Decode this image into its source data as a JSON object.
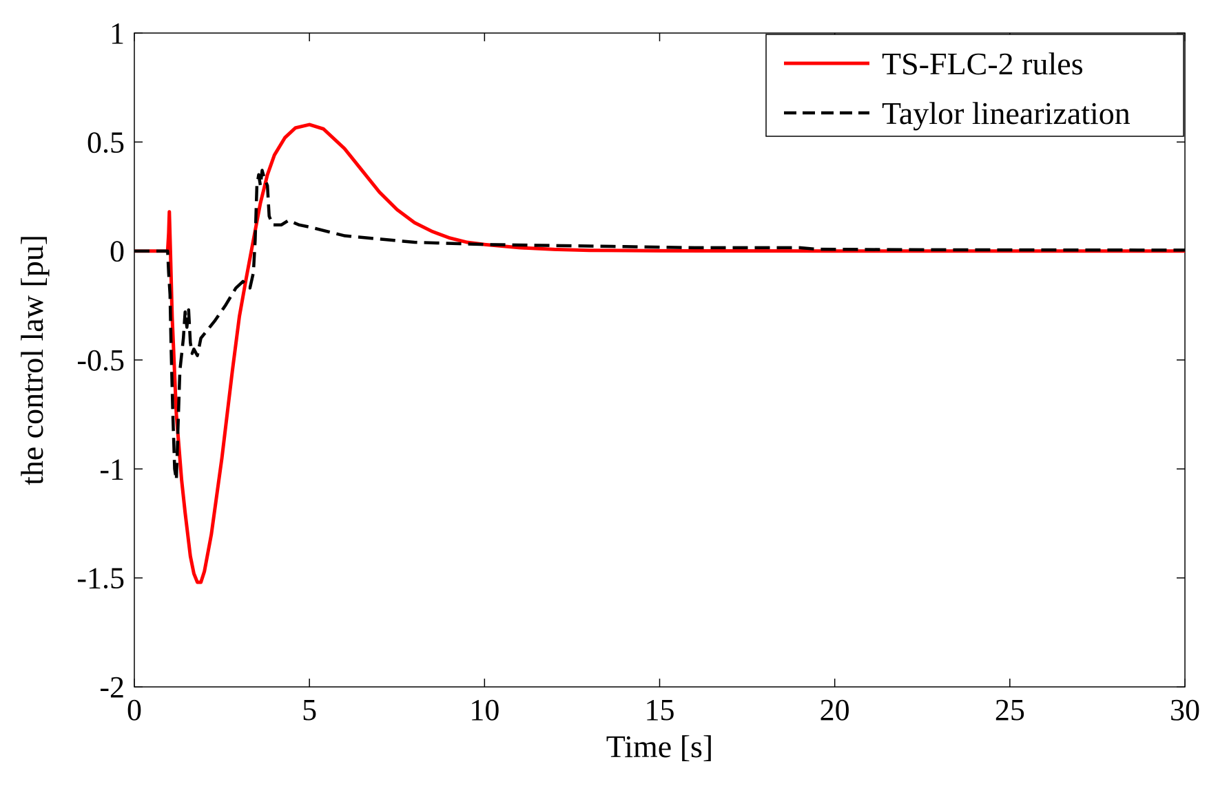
{
  "chart_data": {
    "type": "line",
    "title": "",
    "xlabel": "Time [s]",
    "ylabel": "the control law [pu]",
    "xlim": [
      0,
      30
    ],
    "ylim": [
      -2,
      1
    ],
    "grid": false,
    "legend_position": "top-right",
    "xticks": [
      0,
      5,
      10,
      15,
      20,
      25,
      30
    ],
    "xtick_labels": [
      "0",
      "5",
      "10",
      "15",
      "20",
      "25",
      "30"
    ],
    "yticks": [
      1,
      0.5,
      0,
      -0.5,
      -1,
      -1.5,
      -2
    ],
    "ytick_labels": [
      "1",
      "0.5",
      "0",
      "-0.5",
      "-1",
      "-1.5",
      "-2"
    ],
    "series": [
      {
        "name": "TS-FLC-2 rules",
        "color": "#ff0000",
        "style": "solid",
        "points": [
          [
            0,
            0
          ],
          [
            0.95,
            0
          ],
          [
            0.98,
            0.08
          ],
          [
            1.0,
            0.18
          ],
          [
            1.03,
            0.0
          ],
          [
            1.08,
            -0.3
          ],
          [
            1.2,
            -0.75
          ],
          [
            1.35,
            -1.05
          ],
          [
            1.45,
            -1.2
          ],
          [
            1.6,
            -1.4
          ],
          [
            1.7,
            -1.48
          ],
          [
            1.8,
            -1.52
          ],
          [
            1.9,
            -1.52
          ],
          [
            2.0,
            -1.47
          ],
          [
            2.2,
            -1.3
          ],
          [
            2.5,
            -0.95
          ],
          [
            2.8,
            -0.55
          ],
          [
            3.0,
            -0.3
          ],
          [
            3.2,
            -0.12
          ],
          [
            3.4,
            0.05
          ],
          [
            3.6,
            0.22
          ],
          [
            3.8,
            0.35
          ],
          [
            4.0,
            0.44
          ],
          [
            4.3,
            0.52
          ],
          [
            4.6,
            0.565
          ],
          [
            5.0,
            0.58
          ],
          [
            5.4,
            0.56
          ],
          [
            6.0,
            0.47
          ],
          [
            6.5,
            0.37
          ],
          [
            7.0,
            0.27
          ],
          [
            7.5,
            0.19
          ],
          [
            8.0,
            0.13
          ],
          [
            8.5,
            0.09
          ],
          [
            9.0,
            0.06
          ],
          [
            9.5,
            0.04
          ],
          [
            10.0,
            0.03
          ],
          [
            11.0,
            0.015
          ],
          [
            12.0,
            0.007
          ],
          [
            13.0,
            0.003
          ],
          [
            15.0,
            0.001
          ],
          [
            20.0,
            0.0
          ],
          [
            25.0,
            0.0
          ],
          [
            30.0,
            0.0
          ]
        ]
      },
      {
        "name": "Taylor linearization",
        "color": "#000000",
        "style": "dashed",
        "points": [
          [
            0,
            0
          ],
          [
            0.95,
            0
          ],
          [
            0.98,
            -0.1
          ],
          [
            1.02,
            -0.2
          ],
          [
            1.05,
            -0.45
          ],
          [
            1.1,
            -0.75
          ],
          [
            1.15,
            -1.0
          ],
          [
            1.2,
            -1.05
          ],
          [
            1.25,
            -0.8
          ],
          [
            1.3,
            -0.55
          ],
          [
            1.4,
            -0.4
          ],
          [
            1.45,
            -0.28
          ],
          [
            1.5,
            -0.35
          ],
          [
            1.55,
            -0.27
          ],
          [
            1.6,
            -0.42
          ],
          [
            1.65,
            -0.47
          ],
          [
            1.7,
            -0.45
          ],
          [
            1.8,
            -0.48
          ],
          [
            1.9,
            -0.4
          ],
          [
            2.0,
            -0.38
          ],
          [
            2.3,
            -0.32
          ],
          [
            2.6,
            -0.25
          ],
          [
            2.9,
            -0.17
          ],
          [
            3.1,
            -0.14
          ],
          [
            3.3,
            -0.17
          ],
          [
            3.4,
            -0.1
          ],
          [
            3.45,
            0.05
          ],
          [
            3.5,
            0.3
          ],
          [
            3.55,
            0.35
          ],
          [
            3.6,
            0.3
          ],
          [
            3.65,
            0.37
          ],
          [
            3.7,
            0.34
          ],
          [
            3.8,
            0.3
          ],
          [
            3.85,
            0.16
          ],
          [
            3.95,
            0.12
          ],
          [
            4.2,
            0.12
          ],
          [
            4.4,
            0.14
          ],
          [
            4.7,
            0.12
          ],
          [
            5.0,
            0.11
          ],
          [
            5.5,
            0.09
          ],
          [
            6.0,
            0.07
          ],
          [
            7.0,
            0.055
          ],
          [
            8.0,
            0.04
          ],
          [
            9.0,
            0.035
          ],
          [
            10.0,
            0.03
          ],
          [
            12.0,
            0.025
          ],
          [
            14.0,
            0.02
          ],
          [
            16.0,
            0.015
          ],
          [
            19.0,
            0.015
          ],
          [
            19.5,
            0.008
          ],
          [
            22.0,
            0.006
          ],
          [
            25.0,
            0.005
          ],
          [
            30.0,
            0.004
          ]
        ]
      }
    ]
  }
}
